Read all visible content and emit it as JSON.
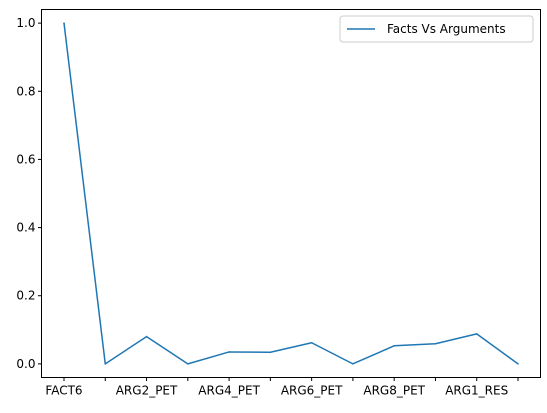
{
  "chart_data": {
    "type": "line",
    "title": "",
    "xlabel": "",
    "ylabel": "",
    "x": [
      "FACT6",
      "",
      "ARG2_PET",
      "",
      "ARG4_PET",
      "",
      "ARG6_PET",
      "",
      "ARG8_PET",
      "",
      "ARG1_RES",
      ""
    ],
    "x_tick_labels": [
      "FACT6",
      "ARG2_PET",
      "ARG4_PET",
      "ARG6_PET",
      "ARG8_PET",
      "ARG1_RES"
    ],
    "y_tick_labels": [
      "0.0",
      "0.2",
      "0.4",
      "0.6",
      "0.8",
      "1.0"
    ],
    "ylim": [
      -0.04,
      1.04
    ],
    "grid": false,
    "legend_position": "top-right",
    "series": [
      {
        "name": "Facts Vs Arguments",
        "color": "#1f77b4",
        "values": [
          1.0,
          0.0,
          0.08,
          0.0,
          0.035,
          0.034,
          0.062,
          0.0,
          0.053,
          0.059,
          0.088,
          0.0
        ]
      }
    ]
  }
}
